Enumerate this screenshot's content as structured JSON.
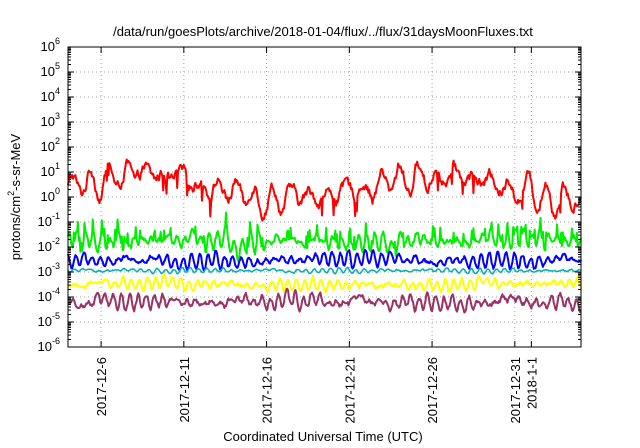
{
  "chart_data": {
    "type": "line",
    "title": "/data/run/goesPlots/archive/2018-01-04/flux/../flux/31daysMoonFluxes.txt",
    "xlabel": "Coordinated Universal Time (UTC)",
    "ylabel_parts": [
      "protons/cm",
      "2",
      "-s-sr-MeV"
    ],
    "y_scale": "log",
    "ylim_exp": [
      -6,
      6
    ],
    "ytick_base": "10",
    "yticks_exp": [
      "-6",
      "-5",
      "-4",
      "-3",
      "-2",
      "-1",
      "0",
      "1",
      "2",
      "3",
      "4",
      "5",
      "6"
    ],
    "xlim": [
      "2017-12-04",
      "2018-01-04"
    ],
    "xticks": [
      {
        "date": "2017-12-06",
        "label": "2017-12-6"
      },
      {
        "date": "2017-12-11",
        "label": "2017-12-11"
      },
      {
        "date": "2017-12-16",
        "label": "2017-12-16"
      },
      {
        "date": "2017-12-21",
        "label": "2017-12-21"
      },
      {
        "date": "2017-12-26",
        "label": "2017-12-26"
      },
      {
        "date": "2017-12-31",
        "label": "2017-12-31"
      },
      {
        "date": "2018-01-01",
        "label": "2018-1-1"
      }
    ],
    "grid": true,
    "legend": "none",
    "series": [
      {
        "color": "#ff0000",
        "width": 2,
        "center": 0.4,
        "amp": 0.55,
        "noise": 0.35,
        "period": 1.1
      },
      {
        "color": "#00ee00",
        "width": 2,
        "center": -1.75,
        "amp": 0.35,
        "noise": 0.25,
        "period": 0.5
      },
      {
        "color": "#0000ff",
        "width": 2,
        "center": -2.55,
        "amp": 0.3,
        "noise": 0.15,
        "period": 0.5
      },
      {
        "color": "#00b0b0",
        "width": 1.5,
        "center": -2.95,
        "amp": 0.1,
        "noise": 0.05,
        "period": 0.5
      },
      {
        "color": "#ffff00",
        "width": 2,
        "center": -3.5,
        "amp": 0.25,
        "noise": 0.15,
        "period": 0.5
      },
      {
        "color": "#993366",
        "width": 2,
        "center": -4.2,
        "amp": 0.3,
        "noise": 0.2,
        "period": 0.5
      }
    ]
  }
}
